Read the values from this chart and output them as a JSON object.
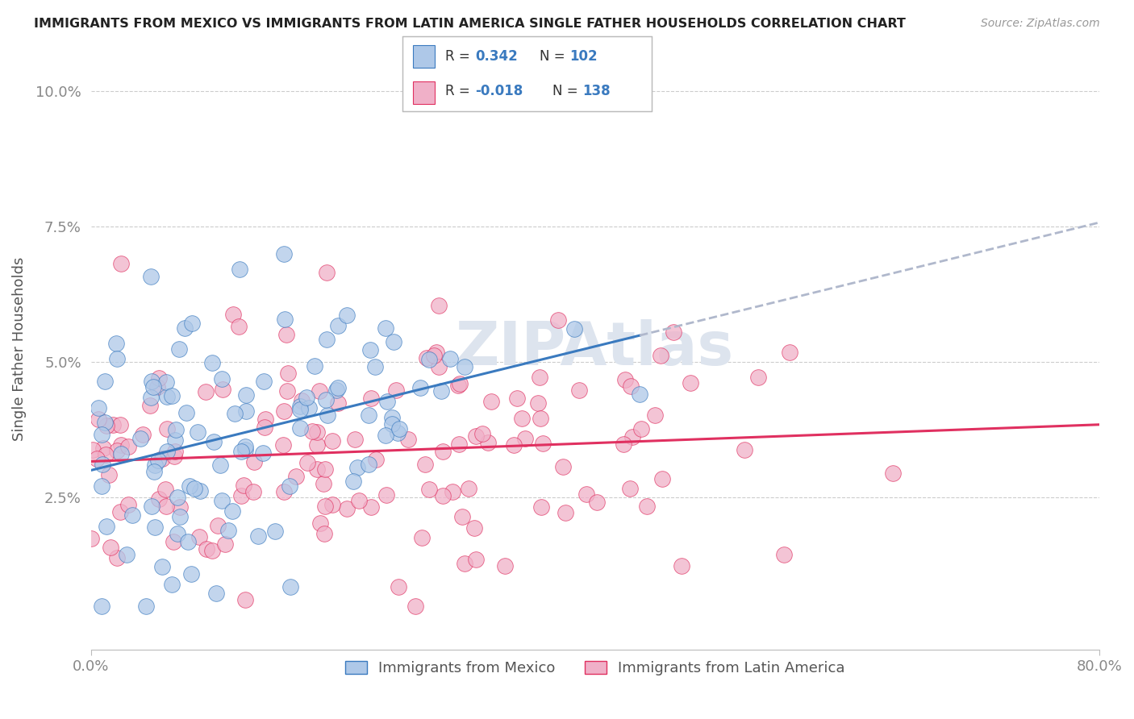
{
  "title": "IMMIGRANTS FROM MEXICO VS IMMIGRANTS FROM LATIN AMERICA SINGLE FATHER HOUSEHOLDS CORRELATION CHART",
  "source": "Source: ZipAtlas.com",
  "ylabel": "Single Father Households",
  "mexico_R": 0.342,
  "mexico_N": 102,
  "latinam_R": -0.018,
  "latinam_N": 138,
  "mexico_color": "#aec8e8",
  "latinam_color": "#f0b0c8",
  "mexico_line_color": "#3a7abf",
  "latinam_line_color": "#e03060",
  "trend_dashed_color": "#b0b8cc",
  "watermark": "ZIPAtlas",
  "legend_labels": [
    "Immigrants from Mexico",
    "Immigrants from Latin America"
  ],
  "xlim": [
    0.0,
    0.8
  ],
  "ylim": [
    -0.003,
    0.108
  ],
  "yticks": [
    0.025,
    0.05,
    0.075,
    0.1
  ],
  "ytick_labels": [
    "2.5%",
    "5.0%",
    "7.5%",
    "10.0%"
  ],
  "xtick_labels": [
    "0.0%",
    "80.0%"
  ],
  "background_color": "#ffffff",
  "stat_text_color": "#3a7abf",
  "legend_label_color": "#3a7abf"
}
